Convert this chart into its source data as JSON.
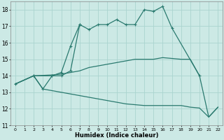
{
  "xlabel": "Humidex (Indice chaleur)",
  "xlim": [
    -0.5,
    22.5
  ],
  "ylim": [
    11,
    18.5
  ],
  "yticks": [
    11,
    12,
    13,
    14,
    15,
    16,
    17,
    18
  ],
  "xticks": [
    0,
    1,
    2,
    3,
    4,
    5,
    6,
    7,
    8,
    9,
    10,
    11,
    12,
    13,
    14,
    15,
    16,
    17,
    18,
    19,
    20,
    21,
    22
  ],
  "bg_color": "#cce9e5",
  "grid_color": "#aad4cf",
  "line_color": "#2a7a6f",
  "line1_x": [
    0,
    2,
    3,
    4,
    5,
    6,
    7,
    8,
    9,
    10,
    11,
    12,
    13,
    14,
    15,
    16,
    17,
    20
  ],
  "line1_y": [
    13.5,
    14.0,
    13.2,
    14.0,
    14.0,
    14.3,
    17.1,
    16.8,
    17.1,
    17.1,
    17.4,
    17.1,
    17.1,
    18.0,
    17.9,
    18.2,
    16.9,
    14.0
  ],
  "line2_x": [
    2,
    4,
    5,
    6,
    7
  ],
  "line2_y": [
    14.0,
    14.0,
    14.2,
    15.8,
    17.1
  ],
  "line3_x": [
    0,
    2,
    4,
    5,
    6,
    7,
    8,
    9,
    10,
    11,
    12,
    13,
    14,
    15,
    16,
    17,
    18,
    19,
    20,
    21,
    22
  ],
  "line3_y": [
    13.5,
    14.0,
    14.05,
    14.1,
    14.2,
    14.3,
    14.5,
    14.6,
    14.7,
    14.8,
    14.9,
    15.0,
    15.0,
    15.0,
    15.1,
    15.05,
    15.0,
    15.0,
    14.0,
    11.5,
    12.1
  ],
  "line4_x": [
    0,
    2,
    3,
    4,
    5,
    6,
    7,
    8,
    9,
    10,
    11,
    12,
    13,
    14,
    15,
    16,
    17,
    18,
    19,
    20,
    21,
    22
  ],
  "line4_y": [
    13.5,
    14.0,
    13.2,
    13.1,
    13.0,
    12.9,
    12.8,
    12.7,
    12.6,
    12.5,
    12.4,
    12.3,
    12.25,
    12.2,
    12.2,
    12.2,
    12.2,
    12.2,
    12.1,
    12.05,
    11.5,
    12.1
  ]
}
